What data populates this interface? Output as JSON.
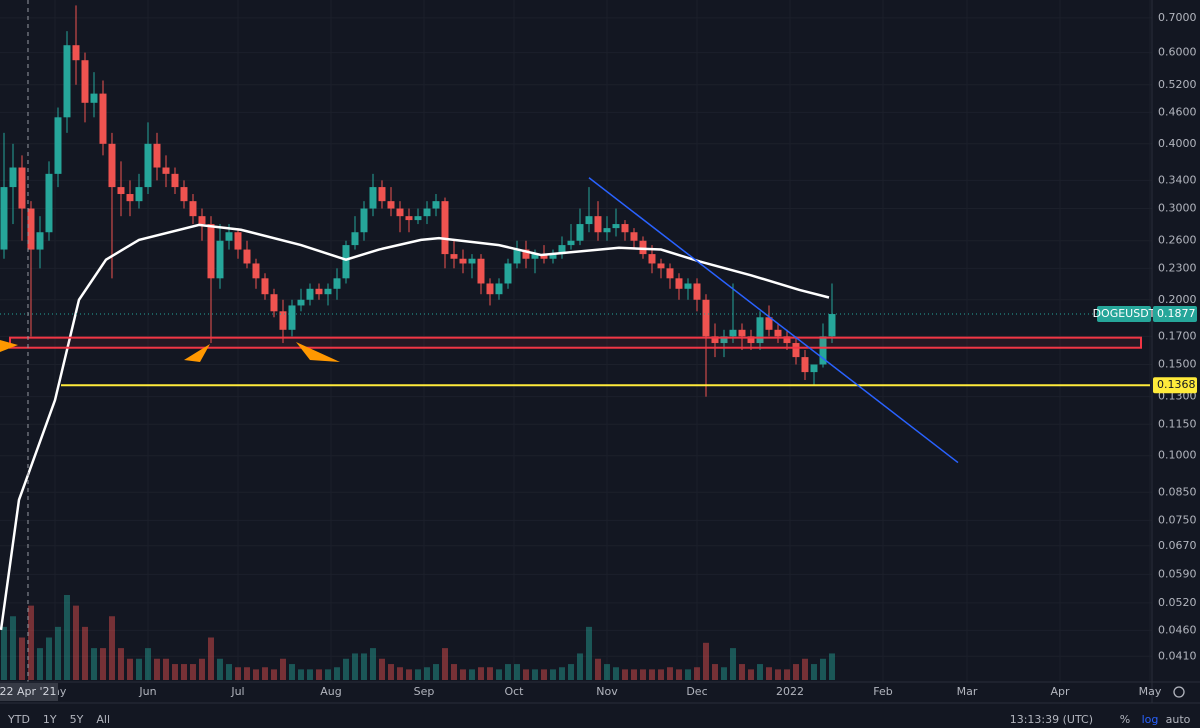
{
  "chart_data": {
    "type": "candlestick",
    "symbol": "DOGEUSDT",
    "last_price": 0.1877,
    "log_scale": true,
    "grid": true,
    "up_color": "#26a69a",
    "down_color": "#ef5350",
    "ylim": [
      0.0369,
      0.758
    ],
    "yticks": [
      {
        "value": 0.7,
        "label": "0.7000"
      },
      {
        "value": 0.6,
        "label": "0.6000"
      },
      {
        "value": 0.52,
        "label": "0.5200"
      },
      {
        "value": 0.46,
        "label": "0.4600"
      },
      {
        "value": 0.4,
        "label": "0.4000"
      },
      {
        "value": 0.34,
        "label": "0.3400"
      },
      {
        "value": 0.3,
        "label": "0.3000"
      },
      {
        "value": 0.26,
        "label": "0.2600"
      },
      {
        "value": 0.23,
        "label": "0.2300"
      },
      {
        "value": 0.2,
        "label": "0.2000"
      },
      {
        "value": 0.17,
        "label": "0.1700"
      },
      {
        "value": 0.15,
        "label": "0.1500"
      },
      {
        "value": 0.13,
        "label": "0.1300"
      },
      {
        "value": 0.115,
        "label": "0.1150"
      },
      {
        "value": 0.1,
        "label": "0.1000"
      },
      {
        "value": 0.085,
        "label": "0.0850"
      },
      {
        "value": 0.075,
        "label": "0.0750"
      },
      {
        "value": 0.067,
        "label": "0.0670"
      },
      {
        "value": 0.059,
        "label": "0.0590"
      },
      {
        "value": 0.052,
        "label": "0.0520"
      },
      {
        "value": 0.046,
        "label": "0.0460"
      },
      {
        "value": 0.041,
        "label": "0.0410"
      }
    ],
    "xlim": [
      -49.33,
      334.67
    ],
    "xticks": [
      {
        "value": -31,
        "label": "May"
      },
      {
        "value": 0,
        "label": "Jun"
      },
      {
        "value": 30,
        "label": "Jul"
      },
      {
        "value": 61,
        "label": "Aug"
      },
      {
        "value": 92,
        "label": "Sep"
      },
      {
        "value": 122,
        "label": "Oct"
      },
      {
        "value": 153,
        "label": "Nov"
      },
      {
        "value": 183,
        "label": "Dec"
      },
      {
        "value": 214,
        "label": "2022"
      },
      {
        "value": 245,
        "label": "Feb"
      },
      {
        "value": 273,
        "label": "Mar"
      },
      {
        "value": 304,
        "label": "Apr"
      },
      {
        "value": 334,
        "label": "May"
      }
    ],
    "crosshair": {
      "value": -40,
      "label": "22 Apr '21"
    },
    "x": [
      -48,
      -45,
      -42,
      -39,
      -36,
      -33,
      -30,
      -27,
      -24,
      -21,
      -18,
      -15,
      -12,
      -9,
      -6,
      -3,
      0,
      3,
      6,
      9,
      12,
      15,
      18,
      21,
      24,
      27,
      30,
      33,
      36,
      39,
      42,
      45,
      48,
      51,
      54,
      57,
      60,
      63,
      66,
      69,
      72,
      75,
      78,
      81,
      84,
      87,
      90,
      93,
      96,
      99,
      102,
      105,
      108,
      111,
      114,
      117,
      120,
      123,
      126,
      129,
      132,
      135,
      138,
      141,
      144,
      147,
      150,
      153,
      156,
      159,
      162,
      165,
      168,
      171,
      174,
      177,
      180,
      183,
      186,
      189,
      192,
      195,
      198,
      201,
      204,
      207,
      210,
      213,
      216,
      219,
      222,
      225,
      228
    ],
    "open": [
      0.25,
      0.33,
      0.36,
      0.3,
      0.25,
      0.27,
      0.35,
      0.45,
      0.62,
      0.58,
      0.48,
      0.5,
      0.4,
      0.33,
      0.32,
      0.31,
      0.33,
      0.4,
      0.36,
      0.35,
      0.33,
      0.31,
      0.29,
      0.28,
      0.22,
      0.26,
      0.27,
      0.25,
      0.235,
      0.22,
      0.205,
      0.19,
      0.175,
      0.195,
      0.2,
      0.21,
      0.205,
      0.21,
      0.22,
      0.255,
      0.27,
      0.3,
      0.33,
      0.31,
      0.3,
      0.29,
      0.285,
      0.29,
      0.3,
      0.31,
      0.245,
      0.24,
      0.235,
      0.24,
      0.215,
      0.205,
      0.215,
      0.235,
      0.25,
      0.24,
      0.245,
      0.24,
      0.245,
      0.255,
      0.26,
      0.28,
      0.29,
      0.27,
      0.275,
      0.28,
      0.27,
      0.26,
      0.245,
      0.235,
      0.23,
      0.22,
      0.21,
      0.215,
      0.2,
      0.17,
      0.165,
      0.17,
      0.175,
      0.17,
      0.165,
      0.185,
      0.175,
      0.17,
      0.165,
      0.155,
      0.145,
      0.15,
      0.17
    ],
    "high": [
      0.42,
      0.4,
      0.38,
      0.31,
      0.29,
      0.37,
      0.47,
      0.66,
      0.74,
      0.6,
      0.55,
      0.53,
      0.42,
      0.37,
      0.34,
      0.35,
      0.44,
      0.42,
      0.38,
      0.36,
      0.34,
      0.32,
      0.3,
      0.29,
      0.28,
      0.28,
      0.275,
      0.26,
      0.24,
      0.225,
      0.21,
      0.2,
      0.2,
      0.21,
      0.215,
      0.215,
      0.215,
      0.23,
      0.26,
      0.29,
      0.31,
      0.35,
      0.34,
      0.33,
      0.31,
      0.3,
      0.3,
      0.31,
      0.32,
      0.315,
      0.26,
      0.25,
      0.245,
      0.245,
      0.22,
      0.22,
      0.24,
      0.26,
      0.26,
      0.25,
      0.255,
      0.25,
      0.265,
      0.28,
      0.3,
      0.33,
      0.31,
      0.29,
      0.3,
      0.285,
      0.275,
      0.265,
      0.255,
      0.24,
      0.235,
      0.225,
      0.22,
      0.22,
      0.205,
      0.18,
      0.175,
      0.215,
      0.18,
      0.175,
      0.19,
      0.195,
      0.18,
      0.175,
      0.17,
      0.16,
      0.15,
      0.18,
      0.215
    ],
    "low": [
      0.24,
      0.28,
      0.26,
      0.17,
      0.23,
      0.26,
      0.33,
      0.42,
      0.52,
      0.44,
      0.45,
      0.38,
      0.22,
      0.29,
      0.29,
      0.3,
      0.32,
      0.34,
      0.33,
      0.32,
      0.3,
      0.28,
      0.26,
      0.165,
      0.21,
      0.25,
      0.24,
      0.23,
      0.21,
      0.2,
      0.185,
      0.165,
      0.17,
      0.19,
      0.195,
      0.2,
      0.195,
      0.2,
      0.215,
      0.25,
      0.26,
      0.29,
      0.3,
      0.29,
      0.27,
      0.27,
      0.28,
      0.28,
      0.29,
      0.23,
      0.23,
      0.225,
      0.22,
      0.205,
      0.195,
      0.2,
      0.21,
      0.23,
      0.23,
      0.225,
      0.235,
      0.235,
      0.24,
      0.25,
      0.255,
      0.27,
      0.26,
      0.26,
      0.265,
      0.26,
      0.25,
      0.24,
      0.225,
      0.22,
      0.21,
      0.2,
      0.2,
      0.19,
      0.13,
      0.155,
      0.155,
      0.165,
      0.16,
      0.16,
      0.16,
      0.17,
      0.165,
      0.16,
      0.15,
      0.14,
      0.137,
      0.148,
      0.165
    ],
    "close": [
      0.33,
      0.36,
      0.3,
      0.25,
      0.27,
      0.35,
      0.45,
      0.62,
      0.58,
      0.48,
      0.5,
      0.4,
      0.33,
      0.32,
      0.31,
      0.33,
      0.4,
      0.36,
      0.35,
      0.33,
      0.31,
      0.29,
      0.28,
      0.22,
      0.26,
      0.27,
      0.25,
      0.235,
      0.22,
      0.205,
      0.19,
      0.175,
      0.195,
      0.2,
      0.21,
      0.205,
      0.21,
      0.22,
      0.255,
      0.27,
      0.3,
      0.33,
      0.31,
      0.3,
      0.29,
      0.285,
      0.29,
      0.3,
      0.31,
      0.245,
      0.24,
      0.235,
      0.24,
      0.215,
      0.205,
      0.215,
      0.235,
      0.25,
      0.24,
      0.245,
      0.24,
      0.245,
      0.255,
      0.26,
      0.28,
      0.29,
      0.27,
      0.275,
      0.28,
      0.27,
      0.26,
      0.245,
      0.235,
      0.23,
      0.22,
      0.21,
      0.215,
      0.2,
      0.17,
      0.165,
      0.17,
      0.175,
      0.17,
      0.165,
      0.185,
      0.175,
      0.17,
      0.165,
      0.155,
      0.145,
      0.15,
      0.17,
      0.1877
    ],
    "volume": [
      5,
      6,
      4,
      7,
      3,
      4,
      5,
      8,
      7,
      5,
      3,
      3,
      6,
      3,
      2,
      2,
      3,
      2,
      2,
      1.5,
      1.5,
      1.5,
      2,
      4,
      2,
      1.5,
      1.2,
      1.2,
      1,
      1.2,
      1,
      2,
      1.5,
      1,
      1,
      1,
      1,
      1.2,
      2,
      2.5,
      2.5,
      3,
      2,
      1.5,
      1.2,
      1,
      1,
      1.2,
      1.5,
      3,
      1.5,
      1,
      1,
      1.2,
      1.2,
      1,
      1.5,
      1.5,
      1,
      1,
      1,
      1,
      1.2,
      1.5,
      2.5,
      5,
      2,
      1.5,
      1.2,
      1,
      1,
      1,
      1,
      1,
      1.2,
      1,
      1,
      1.2,
      3.5,
      1.5,
      1.2,
      3,
      1.5,
      1,
      1.5,
      1.2,
      1,
      1,
      1.5,
      2,
      1.5,
      2,
      2.5
    ],
    "moving_average": {
      "color": "#ffffff",
      "x": [
        -49,
        -43,
        -31,
        -23,
        -14,
        -3,
        17,
        31,
        51,
        66,
        77,
        91,
        97,
        117,
        131,
        157,
        171,
        184,
        201,
        217,
        227
      ],
      "values": [
        0.0461,
        0.0822,
        0.128,
        0.2,
        0.239,
        0.261,
        0.279,
        0.273,
        0.255,
        0.239,
        0.25,
        0.261,
        0.263,
        0.255,
        0.244,
        0.252,
        0.25,
        0.237,
        0.223,
        0.209,
        0.202
      ]
    },
    "zone": {
      "color": "#f23645",
      "low": 0.1616,
      "high": 0.169,
      "x": [
        -46,
        331
      ]
    },
    "level": {
      "color": "#ffeb3b",
      "value": 0.1368,
      "x": [
        -29,
        334
      ]
    },
    "trendline": {
      "color": "#2962ff",
      "x": [
        147,
        270
      ],
      "values": [
        0.344,
        0.097
      ]
    }
  },
  "toolbar": {
    "ranges": [
      "YTD",
      "1Y",
      "5Y",
      "All"
    ],
    "time": "13:13:39 (UTC)",
    "options": [
      "%",
      "log",
      "auto"
    ]
  }
}
